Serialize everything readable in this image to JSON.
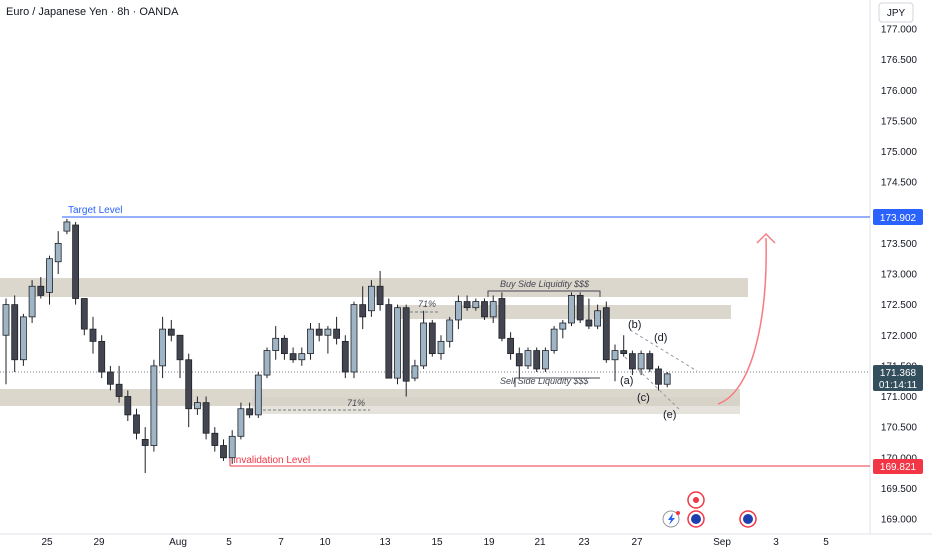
{
  "header": {
    "title": "Euro / Japanese Yen · 8h · OANDA",
    "currency": "JPY"
  },
  "chart_data": {
    "type": "candlestick",
    "title": "Euro / Japanese Yen · 8h · OANDA",
    "ylabel": "JPY",
    "ylim": [
      168.85,
      177.2
    ],
    "yticks": [
      "177.000",
      "176.500",
      "176.000",
      "175.500",
      "175.000",
      "174.500",
      "174.000",
      "173.500",
      "173.000",
      "172.500",
      "172.000",
      "171.500",
      "171.000",
      "170.500",
      "170.000",
      "169.500",
      "169.000"
    ],
    "xticks": [
      "25",
      "29",
      "Aug",
      "5",
      "7",
      "10",
      "13",
      "15",
      "19",
      "21",
      "23",
      "27",
      "Sep",
      "3",
      "5"
    ],
    "grid": false,
    "candles": [
      {
        "o": 172.0,
        "h": 172.6,
        "l": 171.2,
        "c": 172.5
      },
      {
        "o": 172.5,
        "h": 172.65,
        "l": 171.4,
        "c": 171.6
      },
      {
        "o": 171.6,
        "h": 172.35,
        "l": 171.5,
        "c": 172.3
      },
      {
        "o": 172.3,
        "h": 172.9,
        "l": 172.2,
        "c": 172.8
      },
      {
        "o": 172.8,
        "h": 172.95,
        "l": 172.6,
        "c": 172.65
      },
      {
        "o": 172.7,
        "h": 173.3,
        "l": 172.5,
        "c": 173.25
      },
      {
        "o": 173.2,
        "h": 173.7,
        "l": 173.0,
        "c": 173.5
      },
      {
        "o": 173.7,
        "h": 173.9,
        "l": 173.65,
        "c": 173.85
      },
      {
        "o": 173.8,
        "h": 173.85,
        "l": 172.5,
        "c": 172.6
      },
      {
        "o": 172.6,
        "h": 172.6,
        "l": 172.0,
        "c": 172.1
      },
      {
        "o": 172.1,
        "h": 172.3,
        "l": 171.7,
        "c": 171.9
      },
      {
        "o": 171.9,
        "h": 172.0,
        "l": 171.3,
        "c": 171.4
      },
      {
        "o": 171.4,
        "h": 171.5,
        "l": 171.1,
        "c": 171.2
      },
      {
        "o": 171.2,
        "h": 171.5,
        "l": 170.9,
        "c": 171.0
      },
      {
        "o": 171.0,
        "h": 171.1,
        "l": 170.6,
        "c": 170.7
      },
      {
        "o": 170.7,
        "h": 170.8,
        "l": 170.3,
        "c": 170.4
      },
      {
        "o": 170.3,
        "h": 170.5,
        "l": 169.75,
        "c": 170.2
      },
      {
        "o": 170.2,
        "h": 171.6,
        "l": 170.1,
        "c": 171.5
      },
      {
        "o": 171.5,
        "h": 172.3,
        "l": 171.3,
        "c": 172.1
      },
      {
        "o": 172.1,
        "h": 172.25,
        "l": 171.9,
        "c": 172.0
      },
      {
        "o": 172.0,
        "h": 172.0,
        "l": 171.3,
        "c": 171.6
      },
      {
        "o": 171.6,
        "h": 171.7,
        "l": 170.5,
        "c": 170.8
      },
      {
        "o": 170.8,
        "h": 171.0,
        "l": 170.7,
        "c": 170.9
      },
      {
        "o": 170.9,
        "h": 171.0,
        "l": 170.3,
        "c": 170.4
      },
      {
        "o": 170.4,
        "h": 170.5,
        "l": 170.1,
        "c": 170.2
      },
      {
        "o": 170.2,
        "h": 170.3,
        "l": 169.95,
        "c": 170.0
      },
      {
        "o": 170.0,
        "h": 170.45,
        "l": 169.9,
        "c": 170.35
      },
      {
        "o": 170.35,
        "h": 170.9,
        "l": 170.3,
        "c": 170.8
      },
      {
        "o": 170.8,
        "h": 170.9,
        "l": 170.65,
        "c": 170.7
      },
      {
        "o": 170.7,
        "h": 171.4,
        "l": 170.65,
        "c": 171.35
      },
      {
        "o": 171.35,
        "h": 171.8,
        "l": 171.3,
        "c": 171.75
      },
      {
        "o": 171.75,
        "h": 172.15,
        "l": 171.6,
        "c": 171.95
      },
      {
        "o": 171.95,
        "h": 172.0,
        "l": 171.6,
        "c": 171.7
      },
      {
        "o": 171.7,
        "h": 171.8,
        "l": 171.55,
        "c": 171.6
      },
      {
        "o": 171.6,
        "h": 171.8,
        "l": 171.5,
        "c": 171.7
      },
      {
        "o": 171.7,
        "h": 172.2,
        "l": 171.6,
        "c": 172.1
      },
      {
        "o": 172.1,
        "h": 172.2,
        "l": 171.9,
        "c": 172.0
      },
      {
        "o": 172.0,
        "h": 172.15,
        "l": 171.7,
        "c": 172.1
      },
      {
        "o": 172.1,
        "h": 172.3,
        "l": 171.85,
        "c": 171.95
      },
      {
        "o": 171.9,
        "h": 172.0,
        "l": 171.3,
        "c": 171.4
      },
      {
        "o": 171.4,
        "h": 172.55,
        "l": 171.3,
        "c": 172.5
      },
      {
        "o": 172.5,
        "h": 172.8,
        "l": 172.1,
        "c": 172.3
      },
      {
        "o": 172.4,
        "h": 172.9,
        "l": 172.3,
        "c": 172.8
      },
      {
        "o": 172.8,
        "h": 173.05,
        "l": 172.4,
        "c": 172.5
      },
      {
        "o": 172.5,
        "h": 172.6,
        "l": 171.3,
        "c": 171.3
      },
      {
        "o": 171.3,
        "h": 172.5,
        "l": 171.2,
        "c": 172.45
      },
      {
        "o": 172.45,
        "h": 172.5,
        "l": 171.0,
        "c": 171.25
      },
      {
        "o": 171.3,
        "h": 171.6,
        "l": 171.25,
        "c": 171.5
      },
      {
        "o": 171.5,
        "h": 172.4,
        "l": 171.45,
        "c": 172.2
      },
      {
        "o": 172.2,
        "h": 172.25,
        "l": 171.65,
        "c": 171.7
      },
      {
        "o": 171.7,
        "h": 172.0,
        "l": 171.6,
        "c": 171.9
      },
      {
        "o": 171.9,
        "h": 172.3,
        "l": 171.8,
        "c": 172.25
      },
      {
        "o": 172.25,
        "h": 172.65,
        "l": 172.1,
        "c": 172.55
      },
      {
        "o": 172.55,
        "h": 172.65,
        "l": 172.4,
        "c": 172.45
      },
      {
        "o": 172.45,
        "h": 172.6,
        "l": 172.4,
        "c": 172.55
      },
      {
        "o": 172.55,
        "h": 172.6,
        "l": 172.25,
        "c": 172.3
      },
      {
        "o": 172.3,
        "h": 172.65,
        "l": 172.2,
        "c": 172.55
      },
      {
        "o": 172.6,
        "h": 172.7,
        "l": 171.9,
        "c": 171.95
      },
      {
        "o": 171.95,
        "h": 172.05,
        "l": 171.6,
        "c": 171.7
      },
      {
        "o": 171.7,
        "h": 171.8,
        "l": 171.3,
        "c": 171.5
      },
      {
        "o": 171.5,
        "h": 171.8,
        "l": 171.45,
        "c": 171.75
      },
      {
        "o": 171.75,
        "h": 171.8,
        "l": 171.4,
        "c": 171.45
      },
      {
        "o": 171.45,
        "h": 171.8,
        "l": 171.4,
        "c": 171.75
      },
      {
        "o": 171.75,
        "h": 172.15,
        "l": 171.7,
        "c": 172.1
      },
      {
        "o": 172.1,
        "h": 172.25,
        "l": 171.95,
        "c": 172.2
      },
      {
        "o": 172.2,
        "h": 172.7,
        "l": 172.15,
        "c": 172.65
      },
      {
        "o": 172.65,
        "h": 172.7,
        "l": 172.2,
        "c": 172.25
      },
      {
        "o": 172.25,
        "h": 172.6,
        "l": 172.1,
        "c": 172.15
      },
      {
        "o": 172.15,
        "h": 172.5,
        "l": 172.1,
        "c": 172.4
      },
      {
        "o": 172.45,
        "h": 172.55,
        "l": 171.55,
        "c": 171.6
      },
      {
        "o": 171.6,
        "h": 171.85,
        "l": 171.25,
        "c": 171.75
      },
      {
        "o": 171.75,
        "h": 172.0,
        "l": 171.65,
        "c": 171.7
      },
      {
        "o": 171.7,
        "h": 171.75,
        "l": 171.35,
        "c": 171.45
      },
      {
        "o": 171.45,
        "h": 171.75,
        "l": 171.35,
        "c": 171.7
      },
      {
        "o": 171.7,
        "h": 171.75,
        "l": 171.4,
        "c": 171.45
      },
      {
        "o": 171.45,
        "h": 171.5,
        "l": 171.1,
        "c": 171.2
      },
      {
        "o": 171.2,
        "h": 171.4,
        "l": 171.15,
        "c": 171.37
      }
    ],
    "zones": [
      {
        "from": 172.6,
        "to": 172.9,
        "label": "Buy Side Liquidity $$$"
      },
      {
        "from": 172.25,
        "to": 172.45,
        "label": "71%"
      },
      {
        "from": 170.75,
        "to": 171.05,
        "label": "71%"
      }
    ],
    "annotations": [
      "Buy Side Liquidity $$$",
      "Sell Side Liquidity $$$",
      "71%",
      "71%",
      "(a)",
      "(b)",
      "(c)",
      "(d)",
      "(e)"
    ],
    "levels": [
      {
        "name": "Target Level",
        "value": "173.902",
        "color": "#2962ff"
      },
      {
        "name": "Invalidation Level",
        "value": "169.821",
        "color": "#f23645"
      }
    ],
    "last_price": {
      "value": "171.368",
      "countdown": "01:14:11"
    }
  },
  "colors": {
    "up_fill": "#9fb4c4",
    "down_fill": "#434651",
    "border": "#1f2229",
    "zone": "#d6d0c4",
    "target": "#2962ff",
    "invalid": "#f23645",
    "projection": "#f77c80"
  },
  "footer_icons": [
    "flash-icon",
    "event-icon",
    "flag-icon"
  ]
}
